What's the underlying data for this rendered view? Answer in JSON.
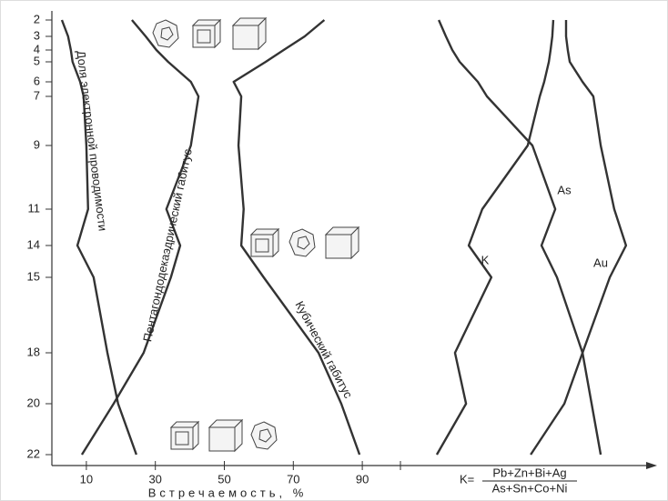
{
  "chart_data": [
    {
      "type": "line",
      "categories": [
        "2",
        "3",
        "4",
        "5",
        "6",
        "7",
        "9",
        "11",
        "14",
        "15",
        "18",
        "20",
        "22"
      ],
      "xlim": [
        0,
        100
      ],
      "xticks": [
        10,
        30,
        50,
        70,
        90
      ],
      "xlabel": "Встречаемость, %",
      "series": [
        {
          "name": "Доля электронной проводимости",
          "color": "#333333",
          "values": [
            2.9,
            4.7,
            5.5,
            6,
            8.2,
            9.2,
            10,
            10.5,
            7.4,
            12.1,
            16.1,
            19.2,
            24.5
          ]
        },
        {
          "name": "Пентагондодекаэдрический габитус",
          "color": "#333333",
          "values": [
            23.2,
            27.2,
            30.3,
            33.7,
            40.3,
            42.5,
            40.3,
            33.2,
            37.2,
            34.5,
            26.6,
            17.9,
            8.7
          ]
        },
        {
          "name": "Кубический габитус",
          "color": "#333333",
          "values": [
            79,
            73.3,
            67.2,
            62,
            52.7,
            54.9,
            54.1,
            55.6,
            54.9,
            61.4,
            77.3,
            83.9,
            89.2
          ]
        }
      ]
    },
    {
      "type": "line",
      "xlim": [
        0,
        100
      ],
      "formula": {
        "prefix": "K=",
        "numerator": "Pb+Zn+Bi+Ag",
        "denominator": "As+Sn+Co+Ni"
      },
      "series": [
        {
          "name": "As",
          "color": "#333333",
          "values": [
            11.9,
            14.8,
            17.4,
            20.4,
            27.8,
            31.5,
            50,
            59.3,
            53.7,
            60,
            70.4,
            74.1,
            77.8
          ]
        },
        {
          "name": "K",
          "color": "#333333",
          "values": [
            58.5,
            58.1,
            57.4,
            56.7,
            54.8,
            53,
            48.1,
            29.6,
            24.1,
            33.3,
            18.5,
            23,
            11.1
          ]
        },
        {
          "name": "Au",
          "color": "#333333",
          "values": [
            63.7,
            63.7,
            64.4,
            65.2,
            70.4,
            74.8,
            77.8,
            83.3,
            88.1,
            81.5,
            70.4,
            63,
            49.3
          ]
        }
      ]
    }
  ]
}
